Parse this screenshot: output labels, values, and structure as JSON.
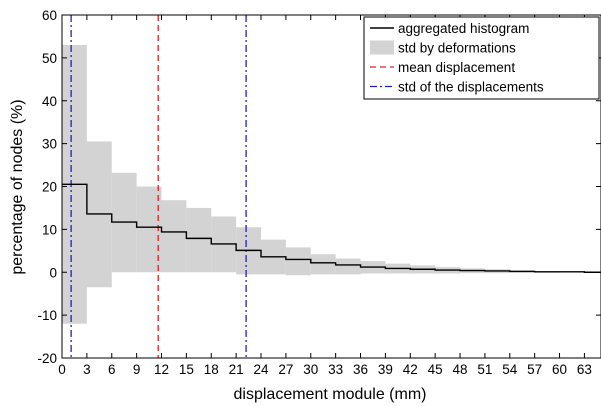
{
  "chart_data": {
    "type": "area",
    "title": "",
    "xlabel": "displacement module (mm)",
    "ylabel": "percentage of nodes (%)",
    "xlim": [
      0,
      65
    ],
    "ylim": [
      -20,
      60
    ],
    "grid": false,
    "legend_position": "top-right",
    "x_ticks": [
      0,
      3,
      6,
      9,
      12,
      15,
      18,
      21,
      24,
      27,
      30,
      33,
      36,
      39,
      42,
      45,
      48,
      51,
      54,
      57,
      60,
      63
    ],
    "y_ticks": [
      -20,
      -10,
      0,
      10,
      20,
      30,
      40,
      50,
      60
    ],
    "bin_edges": [
      0,
      3,
      6,
      9,
      12,
      15,
      18,
      21,
      24,
      27,
      30,
      33,
      36,
      39,
      42,
      45,
      48,
      51,
      54,
      57,
      60,
      63,
      65
    ],
    "series": [
      {
        "name": "aggregated histogram",
        "kind": "step",
        "color": "#000000",
        "values": [
          20.5,
          13.6,
          11.7,
          10.5,
          9.4,
          7.9,
          6.6,
          5.1,
          3.6,
          3.0,
          2.2,
          1.7,
          1.2,
          0.9,
          0.7,
          0.5,
          0.4,
          0.3,
          0.2,
          0.1,
          0.1,
          0.0
        ]
      },
      {
        "name": "std by deformations",
        "kind": "band",
        "color": "#d3d3d3",
        "upper": [
          53.0,
          30.5,
          23.2,
          20.0,
          16.8,
          15.0,
          13.0,
          10.5,
          7.6,
          5.8,
          4.2,
          3.2,
          2.6,
          2.0,
          1.6,
          1.2,
          0.9,
          0.7,
          0.5,
          0.3,
          0.2,
          0.1
        ],
        "lower": [
          -12.0,
          -3.5,
          0.0,
          0.0,
          0.0,
          0.0,
          0.0,
          -0.5,
          -0.5,
          -0.7,
          -0.5,
          -0.5,
          -0.3,
          -0.3,
          -0.3,
          -0.3,
          -0.2,
          -0.2,
          -0.1,
          -0.1,
          0.0,
          0.0
        ]
      },
      {
        "name": "mean displacement",
        "kind": "vline",
        "color": "#e02020",
        "dash": "dashed",
        "x": 11.6
      },
      {
        "name": "std of the displacements",
        "kind": "vline",
        "color": "#2020c8",
        "dash": "dashdot",
        "x": [
          1.1,
          22.2
        ]
      }
    ]
  }
}
